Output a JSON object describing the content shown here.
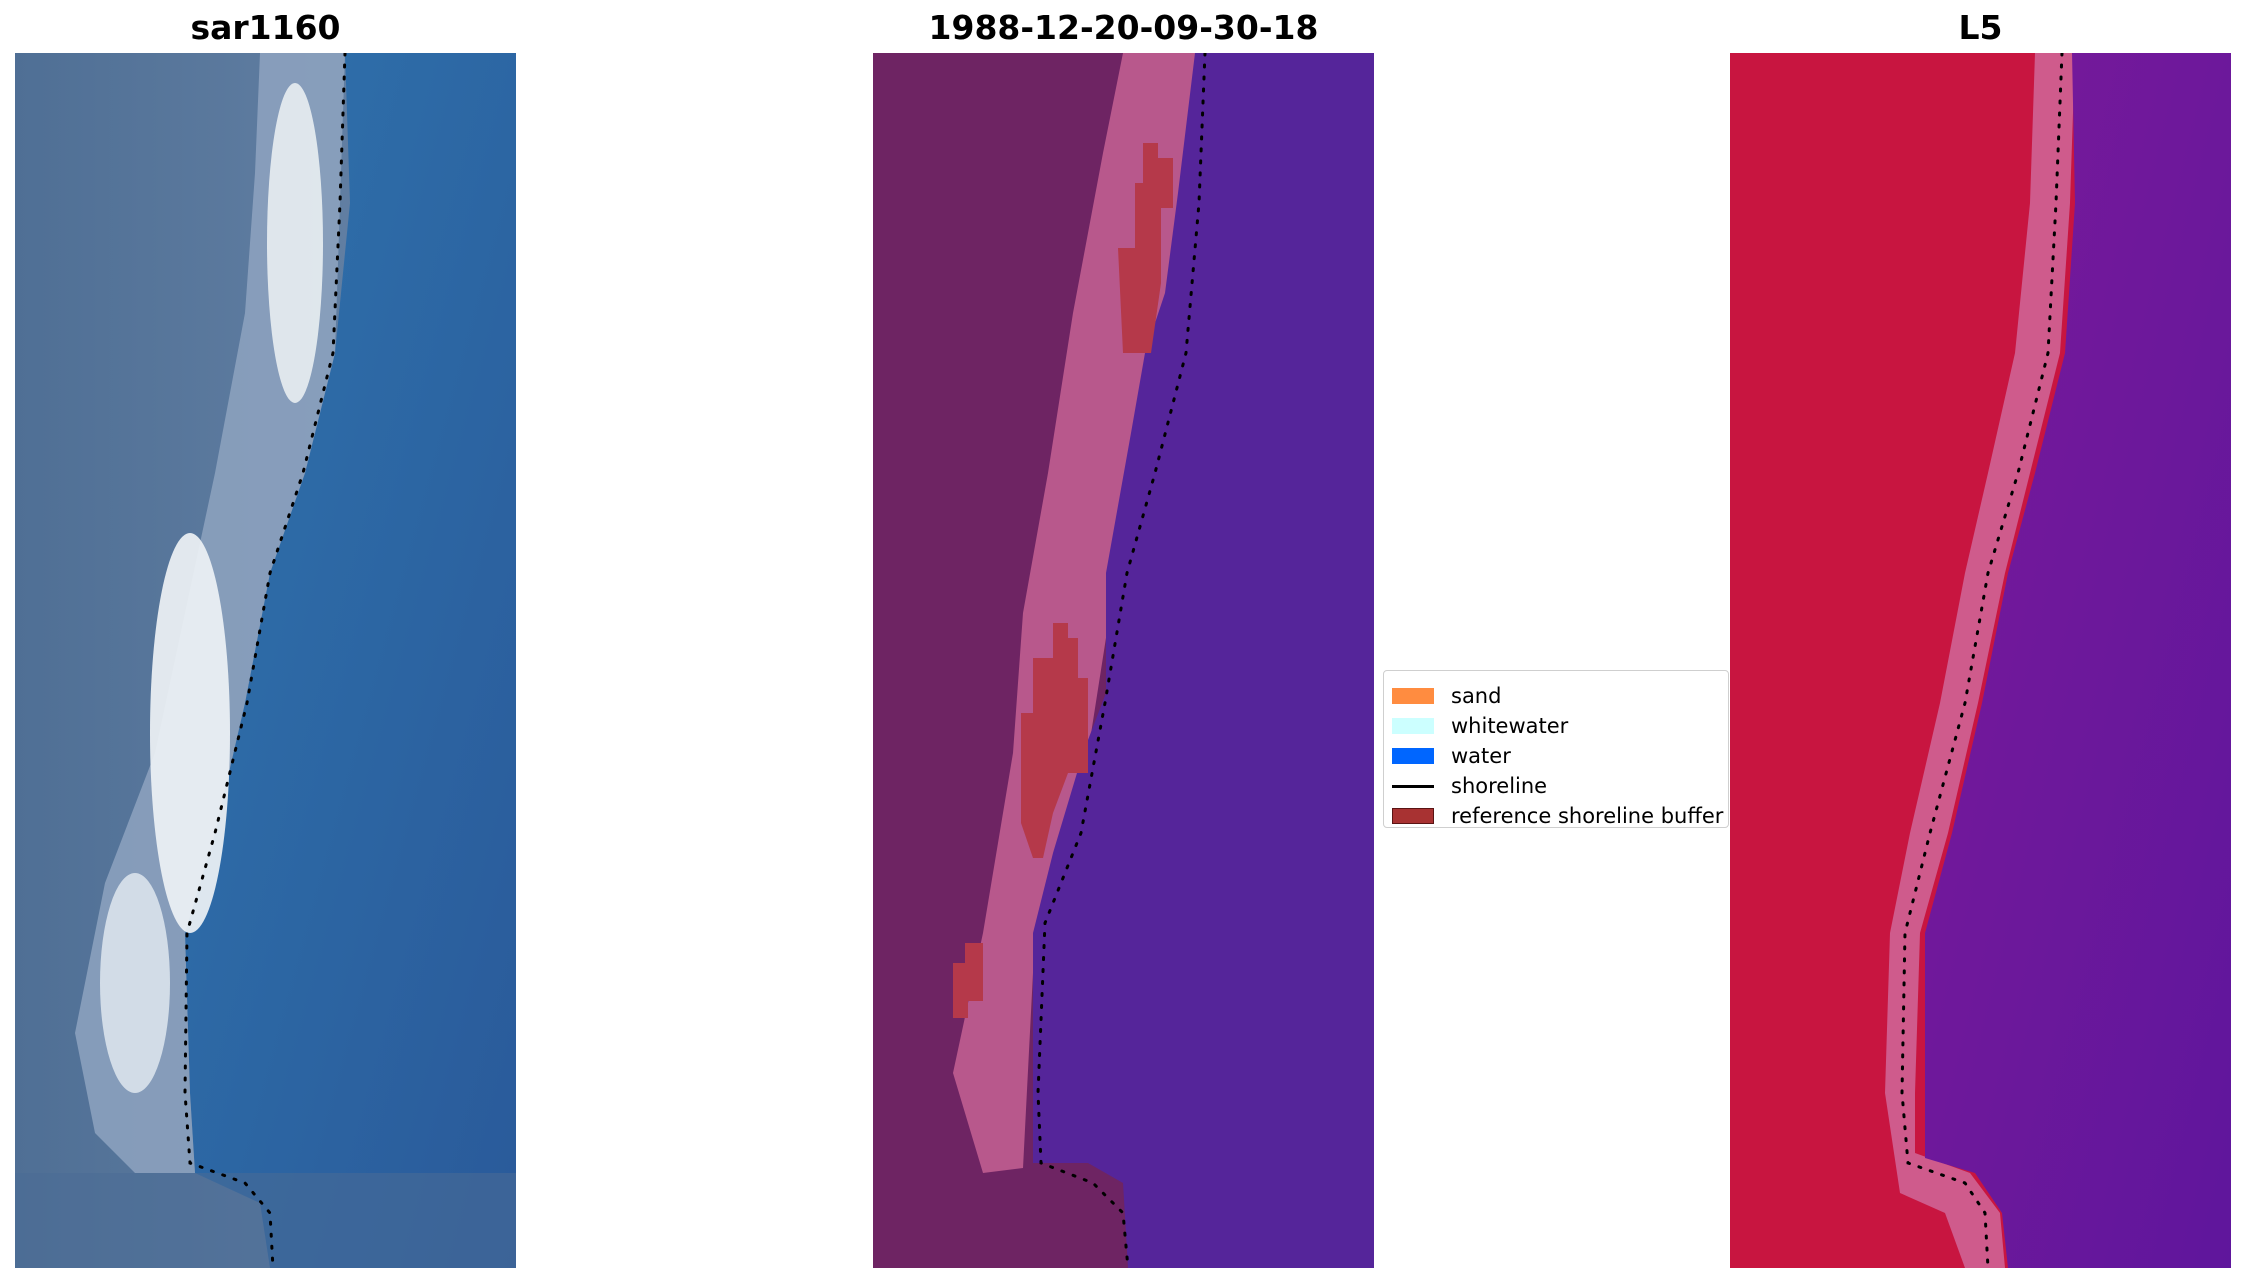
{
  "panels": [
    {
      "title": "sar1160"
    },
    {
      "title": "1988-12-20-09-30-18"
    },
    {
      "title": "L5"
    }
  ],
  "legend": [
    {
      "label": "sand",
      "color": "#ff8c40"
    },
    {
      "label": "whitewater",
      "color": "#ccffff"
    },
    {
      "label": "water",
      "color": "#0066ff"
    },
    {
      "label": "shoreline",
      "color": "#000000"
    },
    {
      "label": "reference shoreline buffer",
      "color": "#a83232"
    }
  ],
  "colors": {
    "rgb_water": "#2f6aa5",
    "rgb_land": "#5d7fa3",
    "rgb_whitewater": "#e8eef2",
    "class_land": "#6e2463",
    "class_beach": "#b8588c",
    "class_water": "#55259a",
    "class_buffer": "#b5394a",
    "index_land": "#c81540",
    "index_beach": "#cf5b8c",
    "index_water": "#6a1a9e"
  }
}
